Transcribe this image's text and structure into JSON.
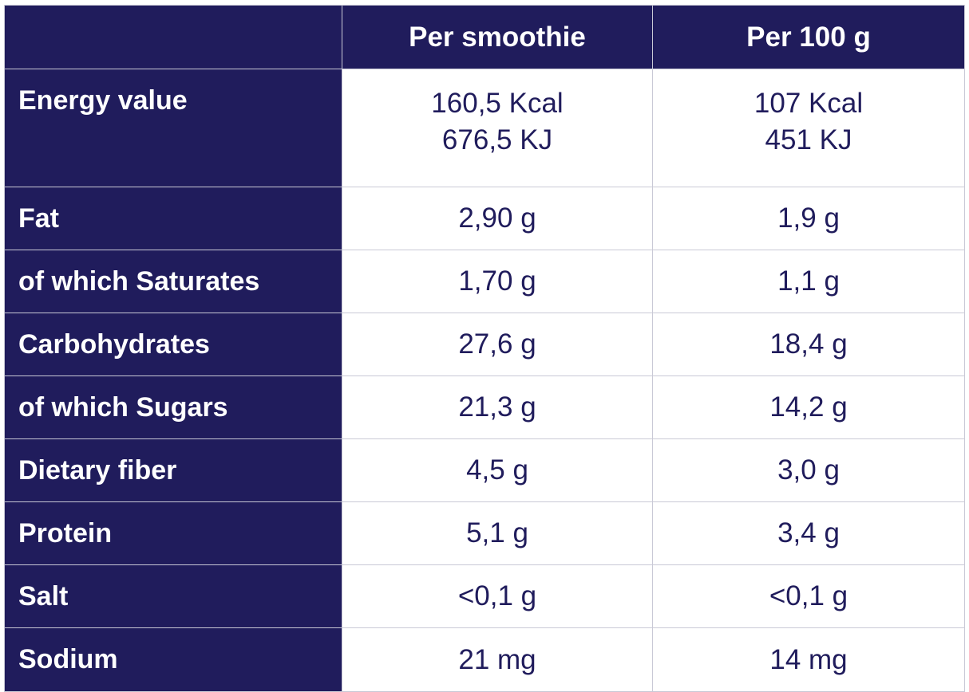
{
  "table": {
    "headers": [
      "",
      "Per smoothie",
      "Per 100 g"
    ],
    "rows": [
      {
        "label": "Energy value",
        "per_smoothie": [
          "160,5 Kcal",
          "676,5 KJ"
        ],
        "per_100g": [
          "107 Kcal",
          "451 KJ"
        ]
      },
      {
        "label": "Fat",
        "per_smoothie": "2,90 g",
        "per_100g": "1,9 g"
      },
      {
        "label": "of which Saturates",
        "per_smoothie": "1,70 g",
        "per_100g": "1,1 g"
      },
      {
        "label": "Carbohydrates",
        "per_smoothie": "27,6 g",
        "per_100g": "18,4 g"
      },
      {
        "label": "of which Sugars",
        "per_smoothie": "21,3 g",
        "per_100g": "14,2 g"
      },
      {
        "label": "Dietary fiber",
        "per_smoothie": "4,5 g",
        "per_100g": "3,0 g"
      },
      {
        "label": "Protein",
        "per_smoothie": "5,1 g",
        "per_100g": "3,4 g"
      },
      {
        "label": "Salt",
        "per_smoothie": "<0,1 g",
        "per_100g": "<0,1 g"
      },
      {
        "label": "Sodium",
        "per_smoothie": "21 mg",
        "per_100g": "14 mg"
      }
    ]
  },
  "colors": {
    "navy": "#201c5c",
    "white": "#ffffff",
    "grid": "#c9c9d6"
  }
}
